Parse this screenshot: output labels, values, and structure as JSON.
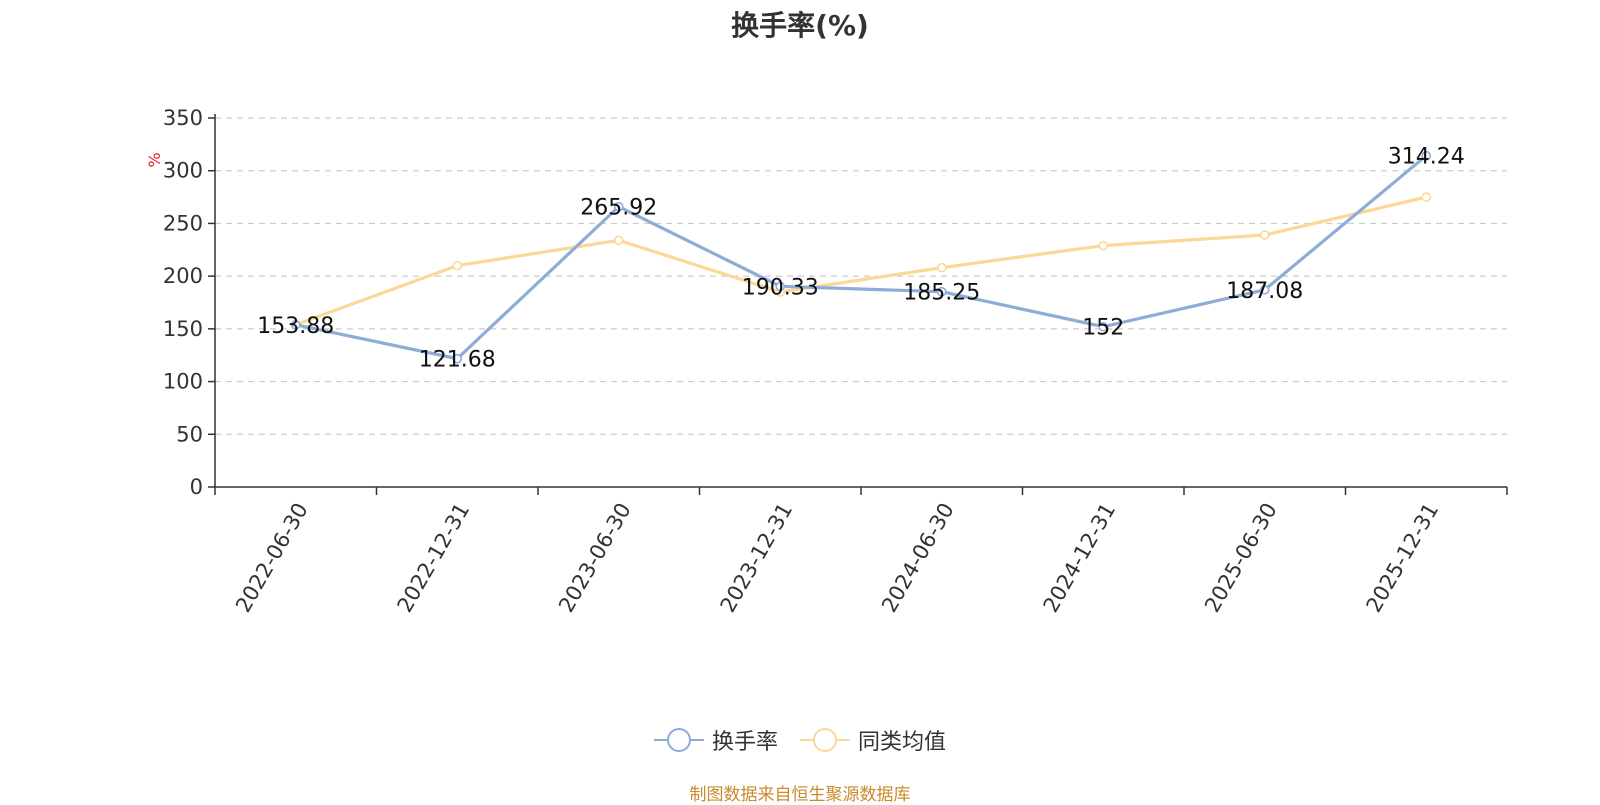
{
  "chart_data": {
    "type": "line",
    "title": "换手率(%)",
    "ylabel": "%",
    "xlabel": "",
    "ylim": [
      0,
      350
    ],
    "yticks": [
      0,
      50,
      100,
      150,
      200,
      250,
      300,
      350
    ],
    "grid": true,
    "legend_position": "bottom",
    "categories": [
      "2022-06-30",
      "2022-12-31",
      "2023-06-30",
      "2023-12-31",
      "2024-06-30",
      "2024-12-31",
      "2025-06-30",
      "2025-12-31"
    ],
    "series": [
      {
        "name": "换手率",
        "color": "#8eacd8",
        "values": [
          153.88,
          121.68,
          265.92,
          190.33,
          185.25,
          152,
          187.08,
          314.24
        ],
        "labels": [
          "153.88",
          "121.68",
          "265.92",
          "190.33",
          "185.25",
          "152",
          "187.08",
          "314.24"
        ]
      },
      {
        "name": "同类均值",
        "color": "#fcd796",
        "values": [
          154,
          210,
          234,
          185,
          208,
          229,
          239,
          275
        ]
      }
    ]
  },
  "source_note": "制图数据来自恒生聚源数据库",
  "colors": {
    "axis": "#333333",
    "grid": "#cccccc",
    "unit": "#e02020"
  }
}
